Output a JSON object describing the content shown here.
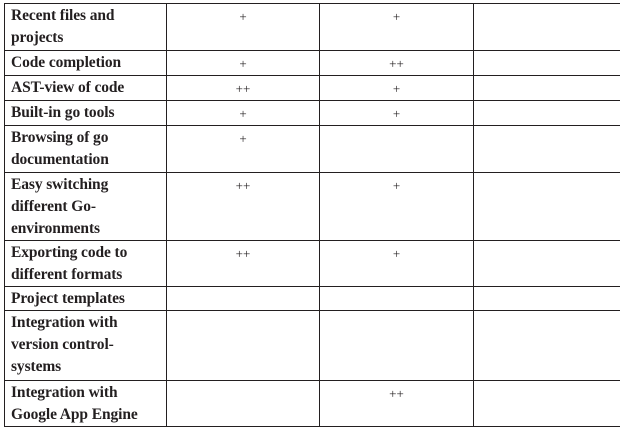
{
  "table": {
    "rows": [
      {
        "feature": "Recent files and projects",
        "cols": [
          "+",
          "+",
          ""
        ]
      },
      {
        "feature": "Code completion",
        "cols": [
          "+",
          "++",
          ""
        ]
      },
      {
        "feature": "AST-view of code",
        "cols": [
          "++",
          "+",
          ""
        ]
      },
      {
        "feature": "Built-in go tools",
        "cols": [
          "+",
          "+",
          ""
        ]
      },
      {
        "feature": "Browsing of go documentation",
        "cols": [
          "+",
          "",
          ""
        ]
      },
      {
        "feature": "Easy switching different Go-environments",
        "cols": [
          "++",
          "+",
          ""
        ]
      },
      {
        "feature": "Exporting code to different formats",
        "cols": [
          "++",
          "+",
          ""
        ]
      },
      {
        "feature": "Project templates",
        "cols": [
          "",
          "",
          ""
        ]
      },
      {
        "feature": "Integration with version control-systems",
        "cols": [
          "",
          "",
          ""
        ]
      },
      {
        "feature": "Integration with Google App Engine",
        "cols": [
          "",
          "++",
          ""
        ]
      }
    ]
  }
}
